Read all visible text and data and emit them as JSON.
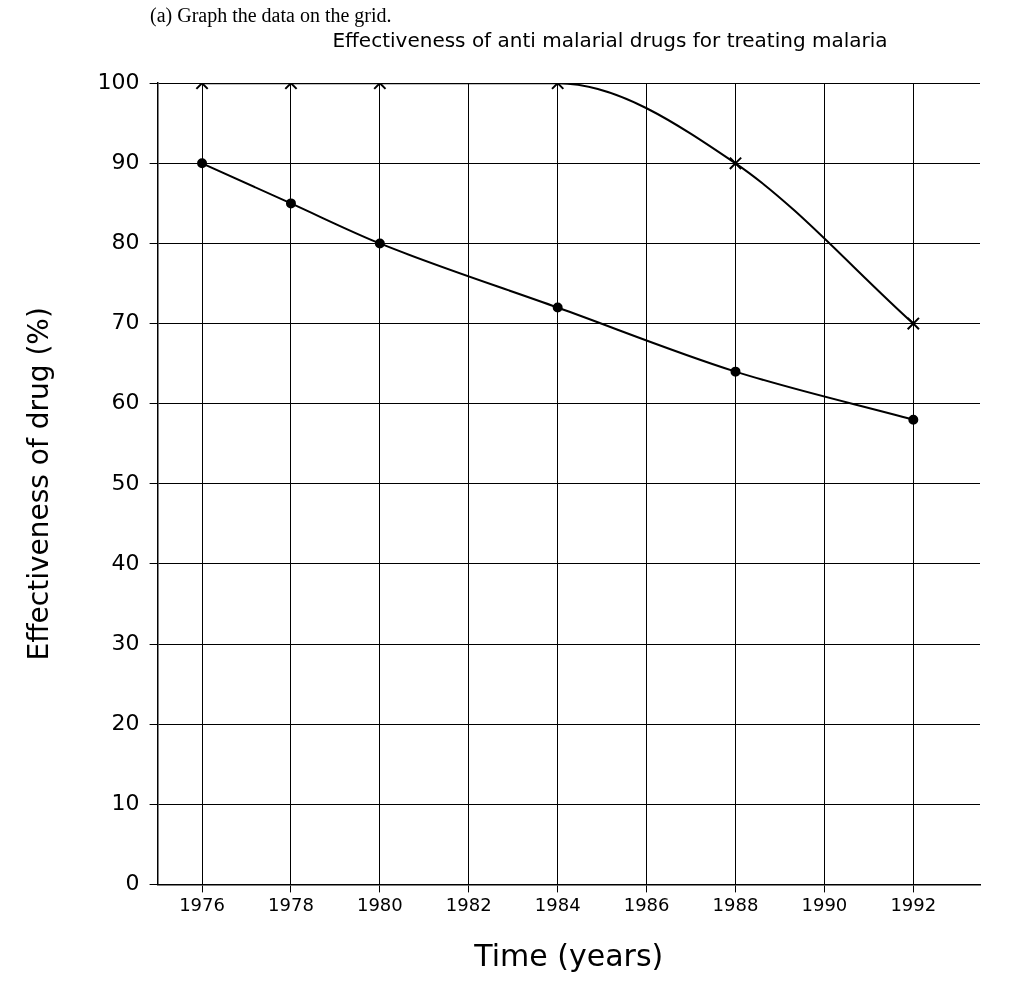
{
  "chart_data": {
    "type": "line",
    "title": "Effectiveness of anti malarial drugs for treating malaria",
    "xlabel": "Time (years)",
    "ylabel": "Effectiveness of drug (%)",
    "annotations": [
      "(a) Graph the data on the grid."
    ],
    "series": [
      {
        "color": "#000000",
        "marker": "cross",
        "x": [
          1976,
          1978,
          1980,
          1984,
          1988,
          1992
        ],
        "values": [
          100,
          100,
          100,
          100,
          90,
          70
        ]
      },
      {
        "color": "#000000",
        "marker": "circle",
        "x": [
          1976,
          1978,
          1980,
          1984,
          1988,
          1992
        ],
        "values": [
          90,
          85,
          80,
          72,
          64,
          58
        ]
      }
    ],
    "xlim": [
      1975,
      1993.5
    ],
    "xticks": [
      1976,
      1978,
      1980,
      1982,
      1984,
      1986,
      1988,
      1990,
      1992
    ],
    "ylim": [
      0,
      100
    ],
    "yticks": [
      0,
      10,
      20,
      30,
      40,
      50,
      60,
      70,
      80,
      90,
      100
    ],
    "grid": true,
    "legend": false
  }
}
